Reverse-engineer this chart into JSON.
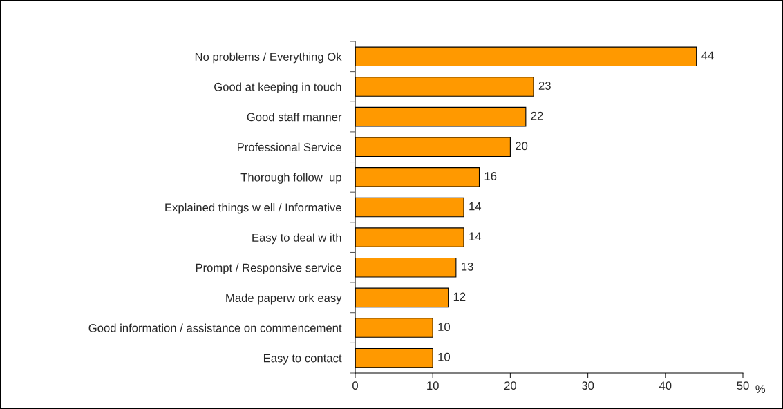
{
  "chart_data": {
    "type": "bar",
    "orientation": "horizontal",
    "categories": [
      "No problems / Everything Ok",
      "Good at keeping in touch",
      "Good staff manner",
      "Professional Service",
      "Thorough follow  up",
      "Explained things w ell / Informative",
      "Easy to deal w ith",
      "Prompt / Responsive service",
      "Made paperw ork easy",
      "Good information / assistance on commencement",
      "Easy to contact"
    ],
    "values": [
      44,
      23,
      22,
      20,
      16,
      14,
      14,
      13,
      12,
      10,
      10
    ],
    "color": "#ff9900",
    "xlim": [
      0,
      50
    ],
    "xticks": [
      0,
      10,
      20,
      30,
      40,
      50
    ],
    "xlabel": "%",
    "data_labels": true,
    "grid": false,
    "legend": false
  }
}
